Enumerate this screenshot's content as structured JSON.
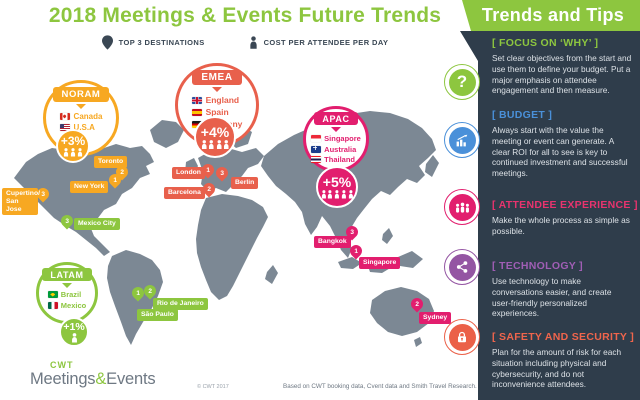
{
  "title": "2018 Meetings & Events Future Trends",
  "legend": {
    "destinations": "TOP 3 DESTINATIONS",
    "cost": "COST PER ATTENDEE PER DAY"
  },
  "colors": {
    "green": "#8dc63f",
    "orange": "#f7a822",
    "red": "#e8604c",
    "pink": "#e21e6e",
    "blue": "#4a90d9",
    "purple": "#9455a3",
    "safety_orange": "#eb6048",
    "navy": "#2f3d4b",
    "map_gray": "#7c8894"
  },
  "regions": [
    {
      "name": "NORAM",
      "change": "+3%",
      "people": 3,
      "countries": [
        {
          "flag": "canada-flag",
          "name": "Canada"
        },
        {
          "flag": "usa-flag",
          "name": "U.S.A"
        }
      ],
      "cities": [
        {
          "name": "Toronto",
          "rank": "2"
        },
        {
          "name": "New York",
          "rank": "1"
        },
        {
          "name": "Cupertino/ San Jose",
          "rank": "3"
        }
      ]
    },
    {
      "name": "EMEA",
      "change": "+4%",
      "people": 4,
      "countries": [
        {
          "flag": "england-flag",
          "name": "England"
        },
        {
          "flag": "spain-flag",
          "name": "Spain"
        },
        {
          "flag": "germany-flag",
          "name": "Germany"
        }
      ],
      "cities": [
        {
          "name": "London",
          "rank": "1"
        },
        {
          "name": "Barcelona",
          "rank": "2"
        },
        {
          "name": "Berlin",
          "rank": "3"
        }
      ]
    },
    {
      "name": "APAC",
      "change": "+5%",
      "people": 5,
      "countries": [
        {
          "flag": "singapore-flag",
          "name": "Singapore"
        },
        {
          "flag": "australia-flag",
          "name": "Australia"
        },
        {
          "flag": "thailand-flag",
          "name": "Thailand"
        }
      ],
      "cities": [
        {
          "name": "Bangkok",
          "rank": "3"
        },
        {
          "name": "Singapore",
          "rank": "1"
        },
        {
          "name": "Sydney",
          "rank": "2"
        }
      ]
    },
    {
      "name": "LATAM",
      "change": "+1%",
      "people": 1,
      "countries": [
        {
          "flag": "brazil-flag",
          "name": "Brazil"
        },
        {
          "flag": "mexico-flag",
          "name": "Mexico"
        }
      ],
      "cities": [
        {
          "name": "Mexico City",
          "rank": "3"
        },
        {
          "name": "Rio de Janeiro",
          "rank": "2"
        },
        {
          "name": "São Paulo",
          "rank": "1"
        }
      ]
    }
  ],
  "sidebar": {
    "header": "Trends and Tips",
    "sections": [
      {
        "icon": "question-icon",
        "title": "[ FOCUS ON ‘WHY’ ]",
        "color": "#8dc63f",
        "body": "Set clear objectives from the start and use them to define your budget. Put a major emphasis on attendee engagement and then measure."
      },
      {
        "icon": "bar-chart-icon",
        "title": "[ BUDGET ]",
        "color": "#4a90d9",
        "body": "Always start with the value the meeting or event can generate. A clear ROI for all to see is key to continued investment and successful meetings."
      },
      {
        "icon": "people-icon",
        "title": "[ ATTENDEE EXPERIENCE ]",
        "color": "#e8336e",
        "body": "Make the whole process as simple as possible."
      },
      {
        "icon": "share-icon",
        "title": "[ TECHNOLOGY ]",
        "color": "#a05eb5",
        "body": "Use technology to make conversations easier, and create user-friendly personalized experiences."
      },
      {
        "icon": "lock-icon",
        "title": "[ SAFETY AND SECURITY ]",
        "color": "#f0654c",
        "body": "Plan for the amount of risk for each situation including physical and cybersecurity, and do not inconvenience attendees."
      }
    ]
  },
  "footer": {
    "logo_top": "CWT",
    "logo_m1": "Meetings",
    "logo_amp": "&",
    "logo_m2": "Events",
    "copyright": "© CWT 2017",
    "source": "Based on CWT booking data, Cvent data and Smith Travel Research."
  }
}
